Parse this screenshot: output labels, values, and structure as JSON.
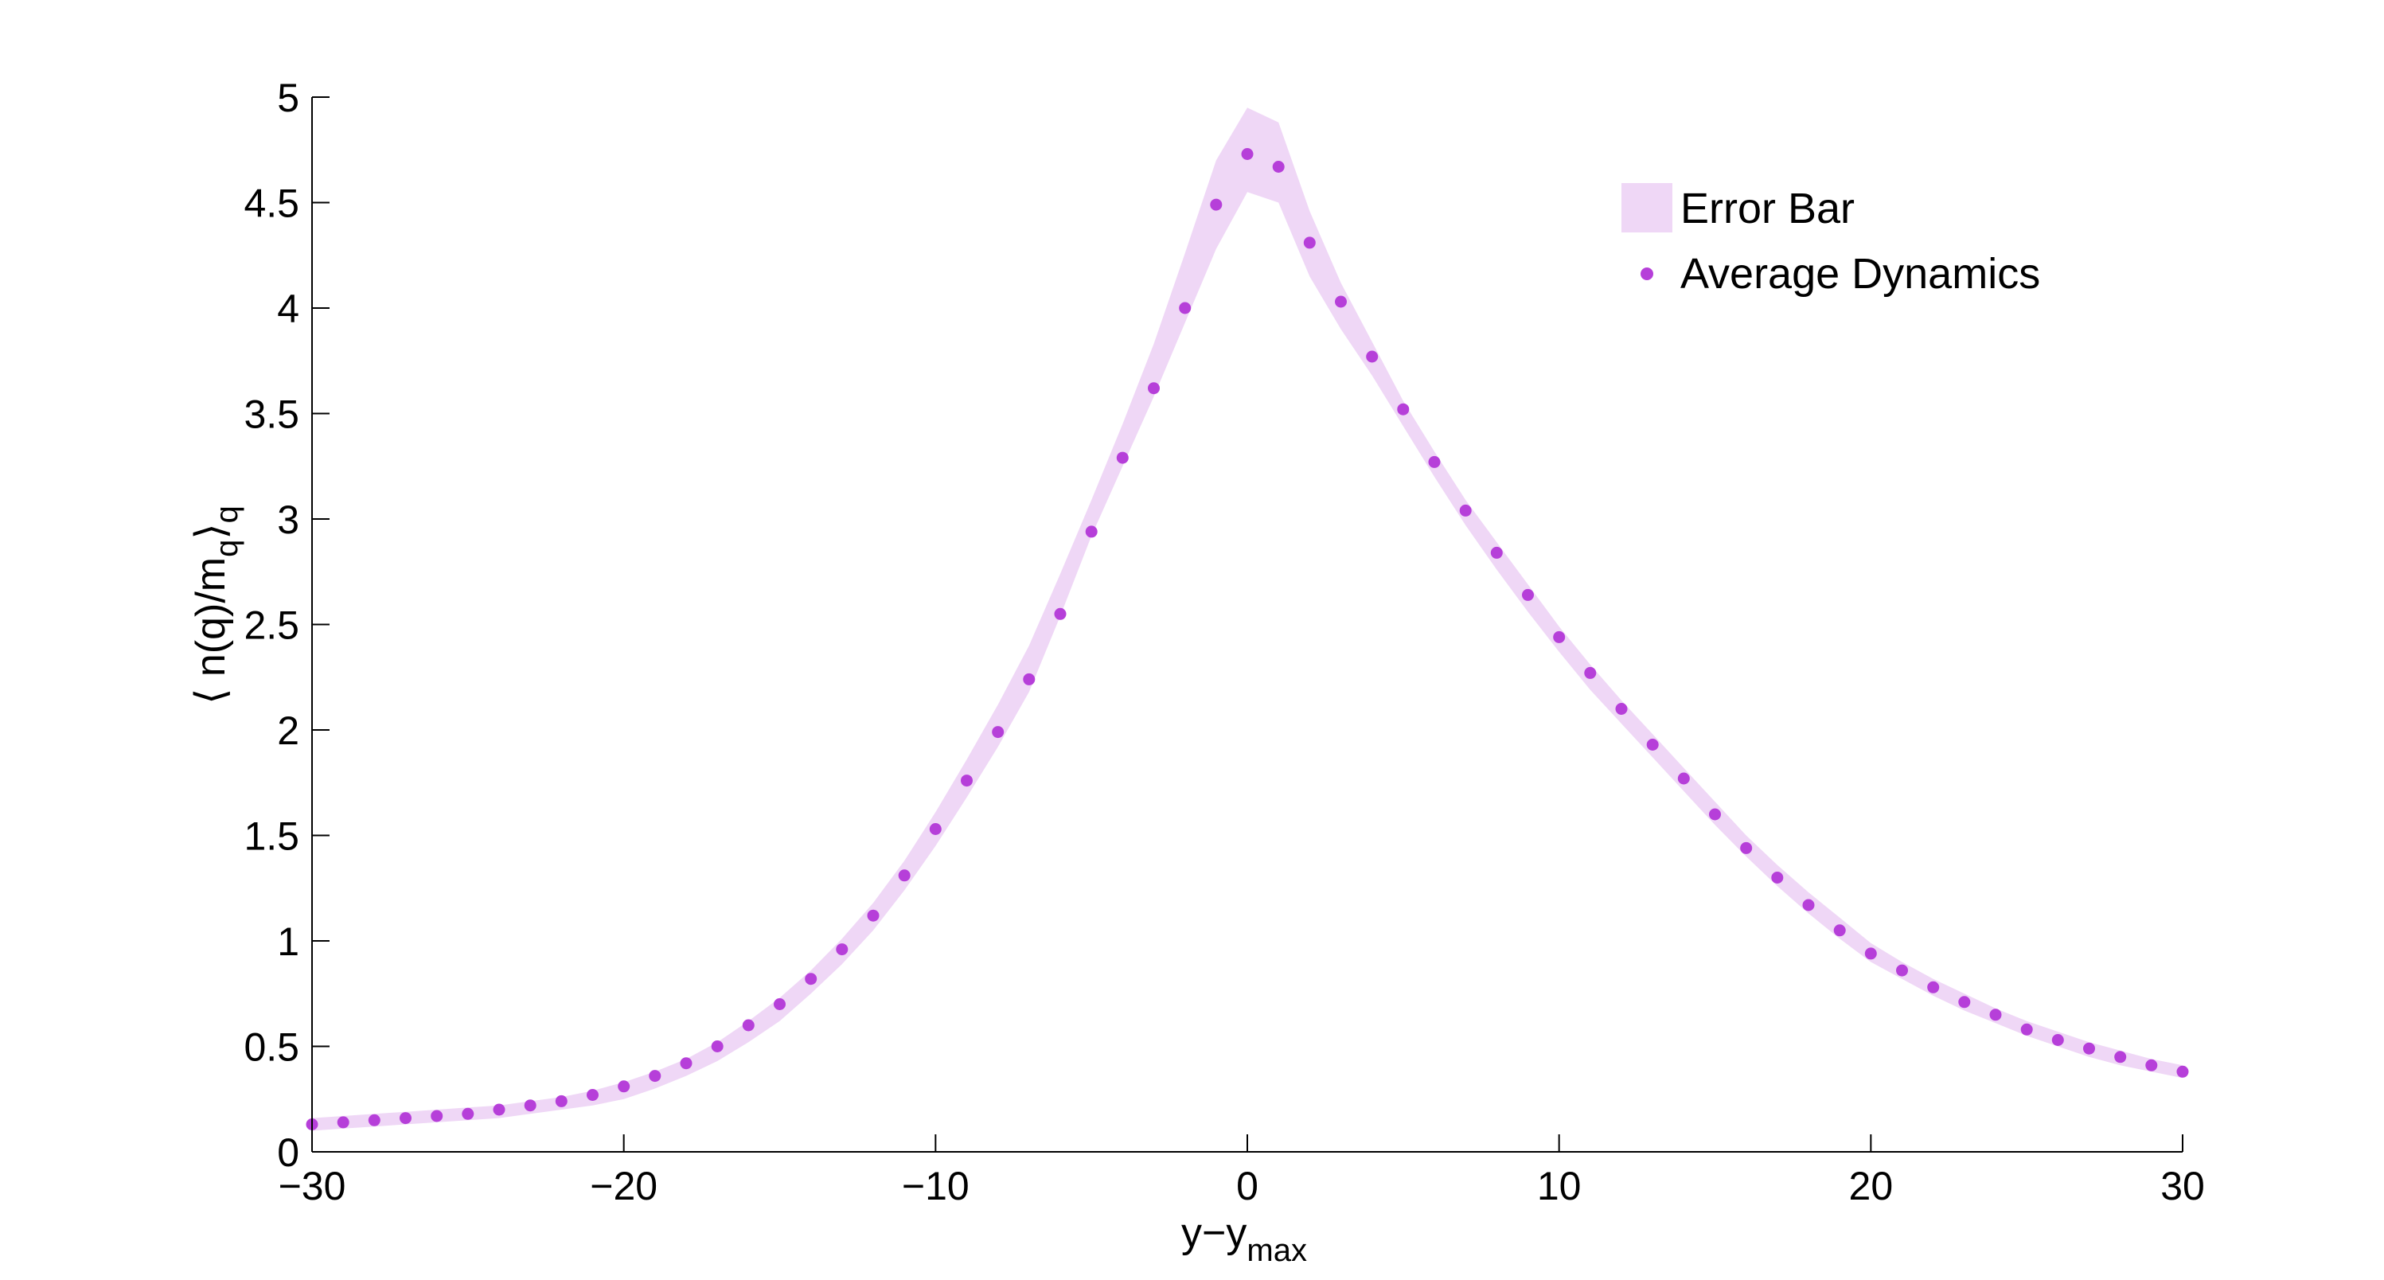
{
  "chart_data": {
    "type": "scatter",
    "xlabel": "y−y",
    "xlabel_sub": "max",
    "ylabel_open": "⟨ n(q)/m",
    "ylabel_sub": "q",
    "ylabel_close": "⟩",
    "ylabel_close_sub": "q",
    "xlim": [
      -30,
      30
    ],
    "ylim": [
      0,
      5
    ],
    "xticks": [
      -30,
      -20,
      -10,
      0,
      10,
      20,
      30
    ],
    "xtick_labels": [
      "−30",
      "−20",
      "−10",
      "0",
      "10",
      "20",
      "30"
    ],
    "yticks": [
      0,
      0.5,
      1,
      1.5,
      2,
      2.5,
      3,
      3.5,
      4,
      4.5,
      5
    ],
    "ytick_labels": [
      "0",
      "0.5",
      "1",
      "1.5",
      "2",
      "2.5",
      "3",
      "3.5",
      "4",
      "4.5",
      "5"
    ],
    "grid": false,
    "legend_position": "top-right",
    "colors": {
      "band": "#efd7f6",
      "points": "#b63fd9",
      "axis": "#000000"
    },
    "series": [
      {
        "name": "Error Bar",
        "kind": "band",
        "x": [
          -30,
          -29,
          -28,
          -27,
          -26,
          -25,
          -24,
          -23,
          -22,
          -21,
          -20,
          -19,
          -18,
          -17,
          -16,
          -15,
          -14,
          -13,
          -12,
          -11,
          -10,
          -9,
          -8,
          -7,
          -6,
          -5,
          -4,
          -3,
          -2,
          -1,
          0,
          1,
          2,
          3,
          4,
          5,
          6,
          7,
          8,
          9,
          10,
          11,
          12,
          13,
          14,
          15,
          16,
          17,
          18,
          19,
          20,
          21,
          22,
          23,
          24,
          25,
          26,
          27,
          28,
          29,
          30
        ],
        "upper": [
          0.16,
          0.17,
          0.18,
          0.19,
          0.2,
          0.21,
          0.22,
          0.24,
          0.26,
          0.29,
          0.33,
          0.38,
          0.44,
          0.52,
          0.62,
          0.73,
          0.86,
          1.01,
          1.18,
          1.38,
          1.61,
          1.86,
          2.12,
          2.4,
          2.74,
          3.09,
          3.45,
          3.83,
          4.26,
          4.7,
          4.95,
          4.88,
          4.46,
          4.12,
          3.84,
          3.56,
          3.32,
          3.09,
          2.89,
          2.69,
          2.49,
          2.31,
          2.14,
          1.98,
          1.82,
          1.66,
          1.5,
          1.36,
          1.23,
          1.11,
          0.99,
          0.9,
          0.82,
          0.75,
          0.68,
          0.62,
          0.57,
          0.52,
          0.48,
          0.44,
          0.41
        ],
        "lower": [
          0.1,
          0.11,
          0.12,
          0.13,
          0.14,
          0.15,
          0.16,
          0.18,
          0.2,
          0.22,
          0.25,
          0.3,
          0.36,
          0.43,
          0.52,
          0.62,
          0.75,
          0.89,
          1.05,
          1.24,
          1.45,
          1.68,
          1.92,
          2.18,
          2.54,
          2.92,
          3.25,
          3.58,
          3.93,
          4.28,
          4.55,
          4.5,
          4.15,
          3.9,
          3.68,
          3.44,
          3.2,
          2.97,
          2.76,
          2.56,
          2.37,
          2.19,
          2.03,
          1.87,
          1.71,
          1.55,
          1.4,
          1.26,
          1.13,
          1.01,
          0.9,
          0.82,
          0.74,
          0.67,
          0.61,
          0.55,
          0.5,
          0.45,
          0.41,
          0.38,
          0.35
        ]
      },
      {
        "name": "Average Dynamics",
        "kind": "points",
        "x": [
          -30,
          -29,
          -28,
          -27,
          -26,
          -25,
          -24,
          -23,
          -22,
          -21,
          -20,
          -19,
          -18,
          -17,
          -16,
          -15,
          -14,
          -13,
          -12,
          -11,
          -10,
          -9,
          -8,
          -7,
          -6,
          -5,
          -4,
          -3,
          -2,
          -1,
          0,
          1,
          2,
          3,
          4,
          5,
          6,
          7,
          8,
          9,
          10,
          11,
          12,
          13,
          14,
          15,
          16,
          17,
          18,
          19,
          20,
          21,
          22,
          23,
          24,
          25,
          26,
          27,
          28,
          29,
          30
        ],
        "y": [
          0.13,
          0.14,
          0.15,
          0.16,
          0.17,
          0.18,
          0.2,
          0.22,
          0.24,
          0.27,
          0.31,
          0.36,
          0.42,
          0.5,
          0.6,
          0.7,
          0.82,
          0.96,
          1.12,
          1.31,
          1.53,
          1.76,
          1.99,
          2.24,
          2.55,
          2.94,
          3.29,
          3.62,
          4.0,
          4.49,
          4.73,
          4.67,
          4.31,
          4.03,
          3.77,
          3.52,
          3.27,
          3.04,
          2.84,
          2.64,
          2.44,
          2.27,
          2.1,
          1.93,
          1.77,
          1.6,
          1.44,
          1.3,
          1.17,
          1.05,
          0.94,
          0.86,
          0.78,
          0.71,
          0.65,
          0.58,
          0.53,
          0.49,
          0.45,
          0.41,
          0.38
        ]
      }
    ]
  }
}
